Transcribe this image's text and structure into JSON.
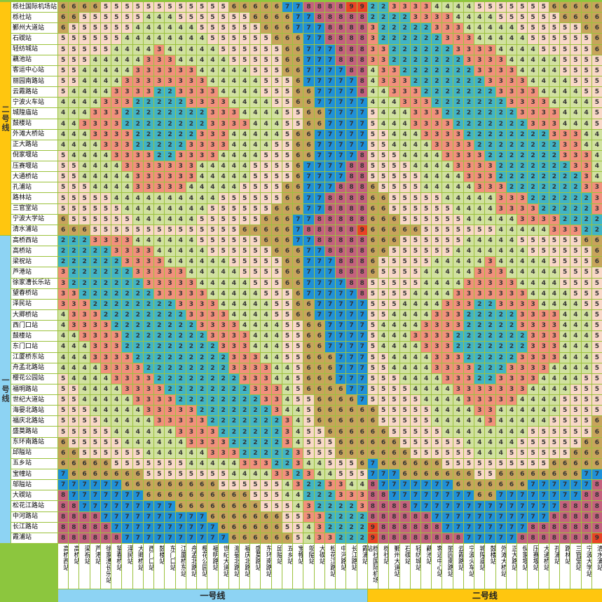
{
  "colors": {
    "background": "#8CC63E",
    "grid_line": "#9BC23C",
    "label_bg": "#FFFFFF",
    "line1_strip": "#8DD3F3",
    "line2_strip": "#FFC60F",
    "cell_text": "#333333"
  },
  "chart_data": {
    "type": "heatmap",
    "title": "",
    "row_groups": [
      {
        "label": "二号线",
        "stations": [
          "栎社国际机场站",
          "栎社站",
          "鄞州大道站",
          "石碶站",
          "轻纺城站",
          "藕池站",
          "客运中心站",
          "丽园南路站",
          "云霞路站",
          "宁波火车站",
          "城隍庙站",
          "鼓楼站",
          "外滩大桥站",
          "正大路站",
          "倪家堰站",
          "压赛堰站",
          "大通桥站",
          "孔浦站",
          "路林站",
          "三官堂站",
          "宁波大学站",
          "清水浦站"
        ]
      },
      {
        "label": "一号线",
        "stations": [
          "高桥西站",
          "高桥站",
          "梁祝站",
          "芦港站",
          "徐家漕长乐站",
          "望春桥站",
          "泽民站",
          "大卿桥站",
          "西门口站",
          "鼓楼站",
          "东门口站",
          "江厦桥东站",
          "舟孟北路站",
          "樱花公园站",
          "福明路站",
          "世纪大道站",
          "海晏北路站",
          "福庆北路站",
          "盛莫路站",
          "东环南路站",
          "邱隘站",
          "五乡站",
          "宝幢站",
          "邬隘站",
          "大碶站",
          "松花江路站",
          "中河路站",
          "长江路站",
          "霞浦站"
        ]
      }
    ],
    "col_groups": [
      {
        "label": "一号线",
        "stations": [
          "高桥西站",
          "高桥站",
          "梁祝站",
          "芦港站",
          "徐家漕长乐站",
          "望春桥站",
          "泽民站",
          "大卿桥站",
          "西门口站",
          "鼓楼站",
          "东门口站",
          "江厦桥东站",
          "舟孟北路站",
          "樱花公园站",
          "福明路站",
          "世纪大道站",
          "海晏北路站",
          "福庆北路站",
          "盛莫路站",
          "东环南路站",
          "邱隘站",
          "五乡站",
          "宝幢站",
          "邬隘站",
          "大碶站",
          "松花江路站",
          "中河路站",
          "长江路站",
          "霞浦站"
        ]
      },
      {
        "label": "二号线",
        "stations": [
          "栎社国际机场站",
          "栎社站",
          "鄞州大道站",
          "石碶站",
          "轻纺城站",
          "藕池站",
          "客运中心站",
          "丽园南路站",
          "云霞路站",
          "宁波火车站",
          "城隍庙站",
          "鼓楼站",
          "外滩大桥站",
          "正大路站",
          "倪家堰站",
          "压赛堰站",
          "大通桥站",
          "孔浦站",
          "路林站",
          "三官堂站",
          "宁波大学站",
          "清水浦站"
        ]
      }
    ],
    "value_colors": {
      "2": "#41B4C6",
      "3": "#F2907C",
      "4": "#D1E1A0",
      "5": "#F9D8C8",
      "6": "#C8A45C",
      "7": "#1F90D8",
      "8": "#C4617E",
      "9": "#EA4226"
    },
    "values": [
      "666655555555555566666778888992233334444555555566666",
      "665555554445555555666677888882222333344445555556666",
      "655555544444455555566677788883222223334444455555566",
      "555555444444445555556667788883222222333444445555556",
      "555554444344444555555667778883322222233334444555556",
      "555444443334444455555667778883322222223333444445555",
      "554444433333344444555667777884332222222333344445555",
      "554444333333334444455567777784333222222233334444555",
      "544443333223333444455566777784433322222223333444455",
      "444433322222333344445566777774443332222222333344445",
      "444333222222223334444556677775444333222222233334445",
      "443333222222223333444556677775444333322222223334445",
      "444333322222233344444566777775544433332222222233344",
      "444433322222333344445566777775544443333222222223344",
      "544443333223333444455566777785554444333322222223334",
      "554444333333344444555567777885555444433332222222334",
      "554444433333344444555567777885555544443332222222234",
      "555444433333444445555667778886555544444333222222233",
      "555554444444444555555667788886655555444443332222223",
      "555555444444445555556667788886655555544443333222223",
      "655555544444455555566677888886665555554444433332222",
      "666555555555555556666678888896666655555554444433322",
      "222333344444455555566677888886665555554444455555566",
      "222223333444445555556667788886655555544444445555556",
      "222222333344444455555667778886555554444434444455556",
      "322222233333444445555667778886555544444333444445555",
      "322222223333344444555667777885555544443333344445555",
      "332222222333334444455567777785555444433333334444555",
      "333222222223333444445566777775554444333223333444455",
      "433322222222333344445566777775544443332222233334445",
      "433332222222233334444556677775444433332222233334445",
      "443333222222223333444556677775444333322222223334445",
      "444333222222222333444556677775444433322222223334445",
      "444333322222222233344556667775544443332222233334445",
      "444433332222222233334456667775544443333222333344445",
      "544443333222222223334456667775554444333223333444455",
      "554444333322222222333456666775555444433333334444555",
      "554444433332222222233455666675555544443333344445555",
      "555444443333322222223445666666555554444334444445555",
      "555544444333332222222345666666555554444434444455556",
      "555554444443333222222345566666655555444444445555556",
      "655555444444333322222345556666665555554444455555566",
      "665555554444443332222235556666666555555444555555666",
      "666665555555444443332234455567666666555555555566666",
      "766666665555555544443323445557776666666556666666677",
      "777777666666666555555432233448777777766666667777778",
      "877777776666666666555442223338877777777667777777788",
      "887777777776666666655543222238888777777777777778888",
      "888877777777776666666553322228888887777777777788888",
      "888887777777777666666554322229888888777777778888888",
      "888888777777777766666654332229888888887777788888889"
    ]
  }
}
